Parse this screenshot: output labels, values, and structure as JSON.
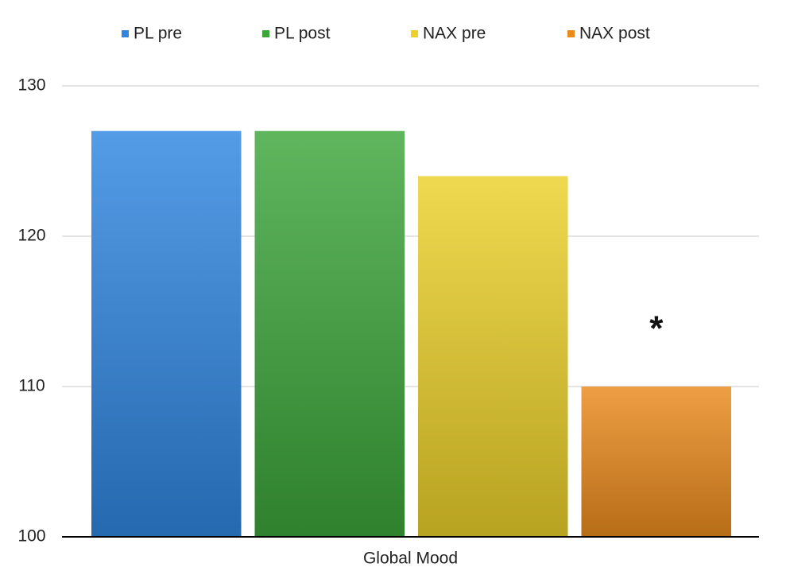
{
  "chart_data": {
    "type": "bar",
    "categories": [
      "Global Mood"
    ],
    "series": [
      {
        "name": "PL pre",
        "color": "#2f86e0",
        "values": [
          127
        ]
      },
      {
        "name": "PL post",
        "color": "#3ca63a",
        "values": [
          127
        ]
      },
      {
        "name": "NAX pre",
        "color": "#ecd12a",
        "values": [
          124
        ]
      },
      {
        "name": "NAX post",
        "color": "#ea8a1c",
        "values": [
          110
        ]
      }
    ],
    "annotation": "*",
    "ylim": [
      100,
      130
    ],
    "yticks": [
      100,
      110,
      120,
      130
    ],
    "grid": true,
    "legend": "top"
  }
}
